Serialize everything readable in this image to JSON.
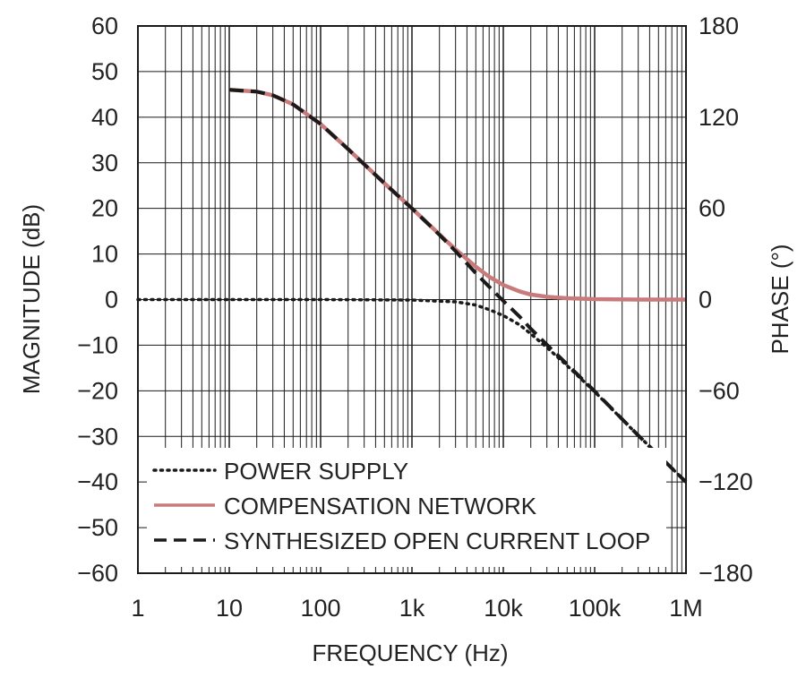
{
  "chart_data": {
    "type": "line",
    "xlabel": "FREQUENCY (Hz)",
    "ylabel_left": "MAGNITUDE (dB)",
    "ylabel_right": "PHASE (°)",
    "x_scale": "log",
    "xlim": [
      1,
      1000000
    ],
    "ylim_left": [
      -60,
      60
    ],
    "ylim_right": [
      -180,
      180
    ],
    "x_ticks": [
      {
        "value": 1,
        "label": "1"
      },
      {
        "value": 10,
        "label": "10"
      },
      {
        "value": 100,
        "label": "100"
      },
      {
        "value": 1000,
        "label": "1k"
      },
      {
        "value": 10000,
        "label": "10k"
      },
      {
        "value": 100000,
        "label": "100k"
      },
      {
        "value": 1000000,
        "label": "1M"
      }
    ],
    "y_ticks_left": [
      {
        "value": 60,
        "label": "60"
      },
      {
        "value": 50,
        "label": "50"
      },
      {
        "value": 40,
        "label": "40"
      },
      {
        "value": 30,
        "label": "30"
      },
      {
        "value": 20,
        "label": "20"
      },
      {
        "value": 10,
        "label": "10"
      },
      {
        "value": 0,
        "label": "0"
      },
      {
        "value": -10,
        "label": "−10"
      },
      {
        "value": -20,
        "label": "−20"
      },
      {
        "value": -30,
        "label": "−30"
      },
      {
        "value": -40,
        "label": "−40"
      },
      {
        "value": -50,
        "label": "−50"
      },
      {
        "value": -60,
        "label": "−60"
      }
    ],
    "y_ticks_right": [
      {
        "value": 180,
        "label": "180"
      },
      {
        "value": 120,
        "label": "120"
      },
      {
        "value": 60,
        "label": "60"
      },
      {
        "value": 0,
        "label": "0"
      },
      {
        "value": -60,
        "label": "−60"
      },
      {
        "value": -120,
        "label": "−120"
      },
      {
        "value": -180,
        "label": "−180"
      }
    ],
    "grid": true,
    "legend_position": "bottom-left",
    "series": [
      {
        "name": "POWER SUPPLY",
        "style": "dotted",
        "color": "#1a1a1a",
        "x": [
          1,
          10,
          100,
          1000,
          3000,
          5000,
          7000,
          10000,
          15000,
          20000,
          30000,
          50000,
          100000,
          300000,
          1000000
        ],
        "y": [
          0,
          0,
          0,
          -0.1,
          -0.5,
          -1.2,
          -2.2,
          -3.5,
          -5.5,
          -7.5,
          -10.5,
          -14.5,
          -20.2,
          -29.8,
          -40
        ]
      },
      {
        "name": "COMPENSATION NETWORK",
        "style": "solid",
        "color": "#c97b7b",
        "x": [
          10,
          20,
          30,
          50,
          100,
          200,
          500,
          1000,
          2000,
          3000,
          5000,
          7000,
          10000,
          15000,
          20000,
          30000,
          50000,
          100000,
          300000,
          1000000
        ],
        "y": [
          46,
          45.6,
          44.8,
          42.8,
          38.5,
          33,
          25.5,
          20,
          14.3,
          11,
          7.2,
          5,
          3.2,
          1.8,
          1.1,
          0.6,
          0.3,
          0.1,
          0,
          0
        ]
      },
      {
        "name": "SYNTHESIZED OPEN CURRENT LOOP",
        "style": "dashed",
        "color": "#1a1a1a",
        "x": [
          10,
          20,
          30,
          50,
          100,
          200,
          500,
          1000,
          2000,
          3000,
          5000,
          7000,
          10000,
          15000,
          20000,
          30000,
          50000,
          100000,
          300000,
          1000000
        ],
        "y": [
          46,
          45.6,
          44.8,
          42.8,
          38.5,
          33,
          25.5,
          20,
          14.2,
          10.6,
          5.8,
          2.8,
          -0.3,
          -3.7,
          -6.4,
          -9.9,
          -14.2,
          -20.1,
          -29.8,
          -40
        ]
      }
    ]
  }
}
